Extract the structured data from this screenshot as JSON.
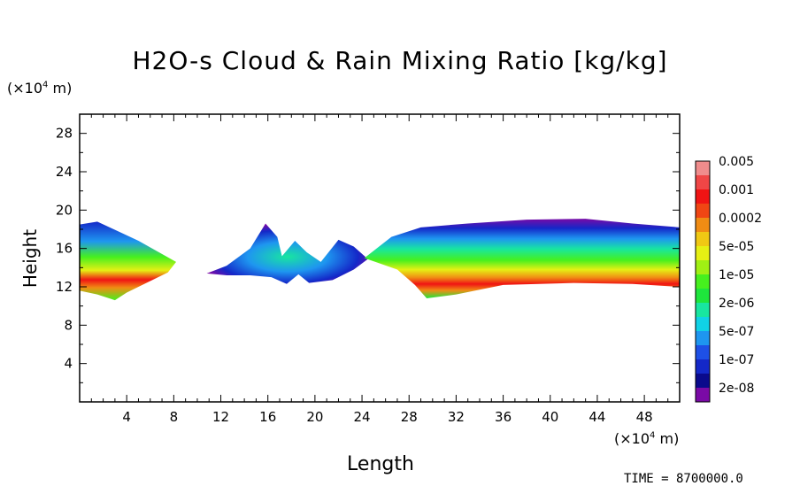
{
  "chart_data": {
    "type": "heatmap",
    "title": "H2O-s Cloud & Rain Mixing Ratio [kg/kg]",
    "xlabel": "Length",
    "ylabel": "Height",
    "x_unit_prefix": "(×10",
    "x_unit_exp": "4",
    "x_unit_suffix": " m)",
    "y_unit_prefix": "(×10",
    "y_unit_exp": "4",
    "y_unit_suffix": " m)",
    "xlim": [
      0,
      51
    ],
    "ylim": [
      0,
      30
    ],
    "x_ticks": [
      4,
      8,
      12,
      16,
      20,
      24,
      28,
      32,
      36,
      40,
      44,
      48
    ],
    "y_ticks": [
      4,
      8,
      12,
      16,
      20,
      24,
      28
    ],
    "legend": {
      "placement": "right",
      "levels": [
        "2e-08",
        "1e-07",
        "5e-07",
        "2e-06",
        "1e-05",
        "5e-05",
        "0.0002",
        "0.001",
        "0.005"
      ],
      "colors": [
        "#7a0aa6",
        "#0a0a8c",
        "#1428c8",
        "#1e50e6",
        "#1e96f0",
        "#10d2e6",
        "#18e6a0",
        "#1ee63c",
        "#46f01e",
        "#a0f014",
        "#e6f014",
        "#f0c814",
        "#f08c14",
        "#f04614",
        "#f01414",
        "#f04646",
        "#f08c8c"
      ]
    },
    "field": {
      "description_bands": [
        {
          "x_range": [
            0,
            8.2
          ],
          "y_range": [
            10.5,
            18.5
          ],
          "peak": "0.005",
          "peak_at": [
            1.5,
            12.3
          ]
        },
        {
          "x_range": [
            10.5,
            24.5
          ],
          "y_range": [
            12.2,
            18.5
          ],
          "peak": "2e-06"
        },
        {
          "x_range": [
            24,
            51
          ],
          "y_range": [
            10.8,
            19
          ],
          "peak": "0.001",
          "peak_at": [
            43,
            13.2
          ]
        }
      ]
    },
    "time_label": "TIME = 8700000.0"
  }
}
